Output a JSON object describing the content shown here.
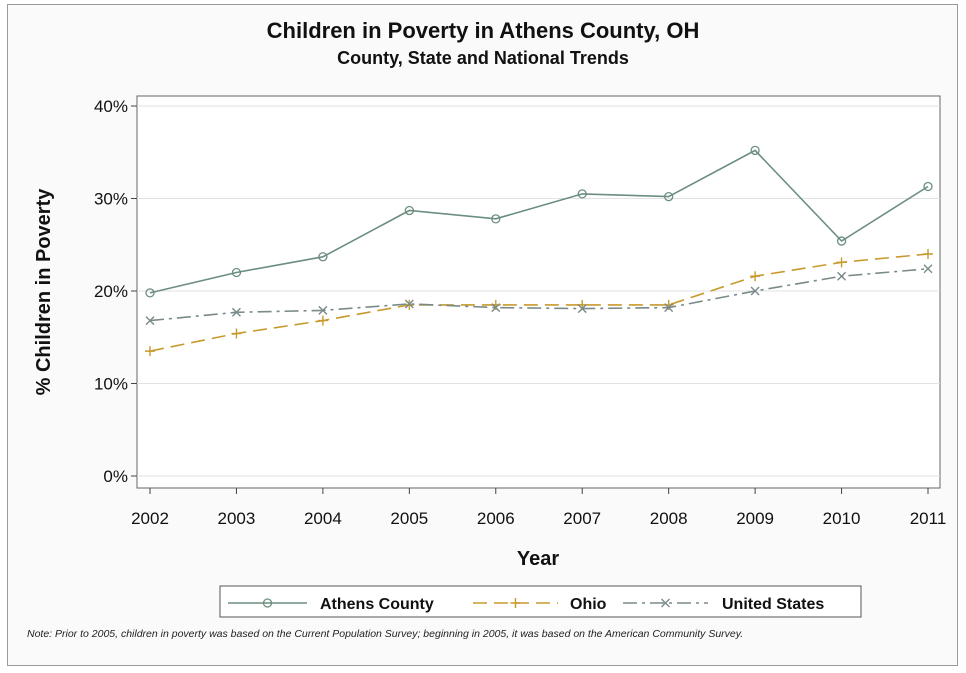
{
  "chart_data": {
    "type": "line",
    "title": "Children in Poverty in Athens County, OH",
    "subtitle": "County, State and National Trends",
    "xlabel": "Year",
    "ylabel": "% Children in Poverty",
    "x": [
      "2002",
      "2003",
      "2004",
      "2005",
      "2006",
      "2007",
      "2008",
      "2009",
      "2010",
      "2011"
    ],
    "ylim": [
      0,
      40
    ],
    "yticks": [
      "0%",
      "10%",
      "20%",
      "30%",
      "40%"
    ],
    "grid": true,
    "legend_position": "bottom",
    "series": [
      {
        "name": "Athens County",
        "marker": "circle",
        "line": "solid",
        "color": "#6b8e7f",
        "values": [
          19.8,
          22.0,
          23.7,
          28.7,
          27.8,
          30.5,
          30.2,
          35.2,
          25.4,
          31.3
        ]
      },
      {
        "name": "Ohio",
        "marker": "plus",
        "line": "dashed",
        "color": "#c89a2c",
        "values": [
          13.5,
          15.4,
          16.8,
          18.5,
          18.5,
          18.5,
          18.5,
          21.6,
          23.1,
          24.0
        ]
      },
      {
        "name": "United States",
        "marker": "x",
        "line": "dashdot",
        "color": "#7a8a8a",
        "values": [
          16.8,
          17.7,
          17.9,
          18.6,
          18.2,
          18.1,
          18.2,
          20.0,
          21.6,
          22.4
        ]
      }
    ]
  },
  "note": "Note: Prior to 2005, children in poverty was based on the Current Population Survey; beginning in 2005, it was based on the American Community Survey."
}
